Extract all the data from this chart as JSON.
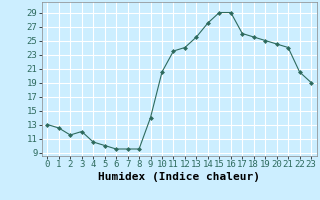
{
  "x": [
    0,
    1,
    2,
    3,
    4,
    5,
    6,
    7,
    8,
    9,
    10,
    11,
    12,
    13,
    14,
    15,
    16,
    17,
    18,
    19,
    20,
    21,
    22,
    23
  ],
  "y": [
    13,
    12.5,
    11.5,
    12,
    10.5,
    10,
    9.5,
    9.5,
    9.5,
    14,
    20.5,
    23.5,
    24,
    25.5,
    27.5,
    29,
    29,
    26,
    25.5,
    25,
    24.5,
    24,
    20.5,
    19
  ],
  "line_color": "#2e6b5e",
  "marker": "D",
  "marker_size": 2.0,
  "bg_color": "#cceeff",
  "grid_color": "#ffffff",
  "xlabel": "Humidex (Indice chaleur)",
  "xlabel_fontsize": 8,
  "tick_fontsize": 6.5,
  "ylim": [
    8.5,
    30.5
  ],
  "xlim": [
    -0.5,
    23.5
  ],
  "yticks": [
    9,
    11,
    13,
    15,
    17,
    19,
    21,
    23,
    25,
    27,
    29
  ],
  "xticks": [
    0,
    1,
    2,
    3,
    4,
    5,
    6,
    7,
    8,
    9,
    10,
    11,
    12,
    13,
    14,
    15,
    16,
    17,
    18,
    19,
    20,
    21,
    22,
    23
  ]
}
